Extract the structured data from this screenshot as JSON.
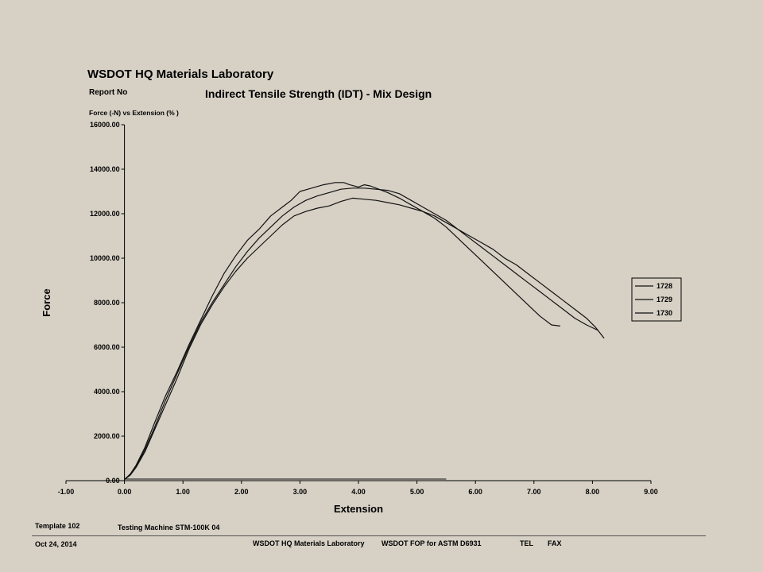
{
  "header": {
    "lab": "WSDOT HQ Materials Laboratory",
    "report_no": "Report No",
    "title": "Indirect Tensile Strength (IDT) - Mix Design",
    "subtitle": "Force (-N) vs Extension (% )"
  },
  "chart_data": {
    "type": "line",
    "xlabel": "Extension",
    "ylabel": "Force",
    "xlim": [
      -1.0,
      9.0
    ],
    "ylim": [
      0.0,
      16000.0
    ],
    "xticks": [
      "-1.00",
      "0.00",
      "1.00",
      "2.00",
      "3.00",
      "4.00",
      "5.00",
      "6.00",
      "7.00",
      "8.00",
      "9.00"
    ],
    "yticks": [
      "0.00",
      "2000.00",
      "4000.00",
      "6000.00",
      "8000.00",
      "10000.00",
      "12000.00",
      "14000.00",
      "16000.00"
    ],
    "grid": false,
    "legend": "right",
    "baseline": {
      "x": [
        0.0,
        5.5
      ],
      "y": [
        70,
        70
      ]
    },
    "series": [
      {
        "name": "1728",
        "x": [
          0,
          0.1,
          0.2,
          0.35,
          0.5,
          0.7,
          0.9,
          1.1,
          1.3,
          1.5,
          1.7,
          1.9,
          2.1,
          2.3,
          2.5,
          2.7,
          2.85,
          3.0,
          3.2,
          3.4,
          3.6,
          3.75,
          3.85,
          4.0,
          4.1,
          4.2,
          4.35,
          4.5,
          4.7,
          4.9,
          5.1,
          5.3,
          5.5,
          5.7,
          5.9,
          6.1,
          6.3,
          6.5,
          6.7,
          6.9,
          7.1,
          7.3,
          7.45
        ],
        "y": [
          50,
          300,
          700,
          1500,
          2500,
          3800,
          4900,
          6100,
          7200,
          8300,
          9300,
          10100,
          10800,
          11300,
          11900,
          12300,
          12600,
          13000,
          13150,
          13300,
          13400,
          13400,
          13300,
          13200,
          13300,
          13250,
          13100,
          12950,
          12700,
          12400,
          12100,
          11800,
          11400,
          10900,
          10400,
          9900,
          9400,
          8900,
          8400,
          7900,
          7400,
          7000,
          6950
        ]
      },
      {
        "name": "1729",
        "x": [
          0,
          0.1,
          0.2,
          0.35,
          0.5,
          0.7,
          0.9,
          1.1,
          1.3,
          1.5,
          1.7,
          1.9,
          2.1,
          2.3,
          2.5,
          2.7,
          2.9,
          3.1,
          3.3,
          3.5,
          3.7,
          3.9,
          4.1,
          4.3,
          4.5,
          4.7,
          4.9,
          5.1,
          5.3,
          5.5,
          5.7,
          5.9,
          6.1,
          6.3,
          6.5,
          6.7,
          6.9,
          7.1,
          7.3,
          7.5,
          7.7,
          7.9,
          8.1
        ],
        "y": [
          50,
          280,
          650,
          1400,
          2300,
          3600,
          4800,
          6000,
          7100,
          8000,
          8800,
          9600,
          10300,
          10900,
          11400,
          11900,
          12300,
          12600,
          12800,
          12950,
          13100,
          13150,
          13150,
          13100,
          13050,
          12900,
          12600,
          12300,
          12000,
          11700,
          11300,
          10900,
          10500,
          10100,
          9700,
          9300,
          8900,
          8500,
          8100,
          7700,
          7300,
          7000,
          6750
        ]
      },
      {
        "name": "1730",
        "x": [
          0,
          0.1,
          0.2,
          0.35,
          0.5,
          0.7,
          0.9,
          1.1,
          1.3,
          1.5,
          1.7,
          1.9,
          2.1,
          2.3,
          2.5,
          2.7,
          2.9,
          3.1,
          3.3,
          3.5,
          3.7,
          3.9,
          4.1,
          4.3,
          4.5,
          4.7,
          4.9,
          5.1,
          5.3,
          5.5,
          5.7,
          5.9,
          6.1,
          6.3,
          6.5,
          6.7,
          6.9,
          7.1,
          7.3,
          7.5,
          7.7,
          7.9,
          8.05,
          8.2
        ],
        "y": [
          50,
          250,
          600,
          1300,
          2200,
          3400,
          4600,
          5900,
          7000,
          7900,
          8700,
          9400,
          10000,
          10500,
          11000,
          11500,
          11900,
          12100,
          12250,
          12350,
          12550,
          12700,
          12650,
          12600,
          12500,
          12400,
          12250,
          12100,
          11900,
          11600,
          11300,
          11000,
          10700,
          10400,
          10000,
          9700,
          9300,
          8900,
          8500,
          8100,
          7700,
          7300,
          6900,
          6400
        ]
      }
    ]
  },
  "footer": {
    "template": "Template 102",
    "machine": "Testing Machine STM-100K 04",
    "date": "Oct 24, 2014",
    "lab": "WSDOT HQ Materials Laboratory",
    "fop": "WSDOT FOP for ASTM D6931",
    "tel": "TEL",
    "fax": "FAX"
  }
}
